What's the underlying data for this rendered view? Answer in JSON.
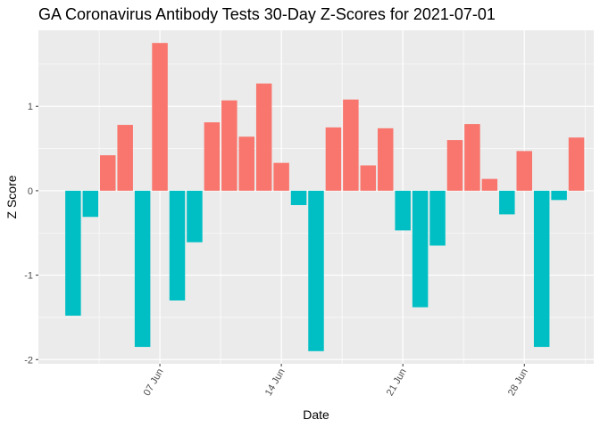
{
  "chart_data": {
    "type": "bar",
    "title": "GA Coronavirus Antibody Tests 30-Day Z-Scores for 2021-07-01",
    "xlabel": "Date",
    "ylabel": "Z Score",
    "x_ticks": [
      {
        "date": "2021-06-07",
        "label": "07 Jun"
      },
      {
        "date": "2021-06-14",
        "label": "14 Jun"
      },
      {
        "date": "2021-06-21",
        "label": "21 Jun"
      },
      {
        "date": "2021-06-28",
        "label": "28 Jun"
      }
    ],
    "y_ticks": [
      -2,
      -1,
      0,
      1
    ],
    "ylim": [
      -2.05,
      1.9
    ],
    "xlim": [
      "2021-05-31",
      "2021-07-02"
    ],
    "grid": true,
    "legend": "none",
    "colors": {
      "positive": "#F8766D",
      "negative": "#00BFC4",
      "panel": "#EBEBEB",
      "grid": "#FFFFFF"
    },
    "categories": [
      "2021-06-02",
      "2021-06-03",
      "2021-06-04",
      "2021-06-05",
      "2021-06-06",
      "2021-06-07",
      "2021-06-08",
      "2021-06-09",
      "2021-06-10",
      "2021-06-11",
      "2021-06-12",
      "2021-06-13",
      "2021-06-14",
      "2021-06-15",
      "2021-06-16",
      "2021-06-17",
      "2021-06-18",
      "2021-06-19",
      "2021-06-20",
      "2021-06-21",
      "2021-06-22",
      "2021-06-23",
      "2021-06-24",
      "2021-06-25",
      "2021-06-26",
      "2021-06-27",
      "2021-06-28",
      "2021-06-29",
      "2021-06-30",
      "2021-07-01"
    ],
    "values": [
      -1.48,
      -0.31,
      0.42,
      0.78,
      -1.85,
      1.75,
      -1.3,
      -0.61,
      0.81,
      1.07,
      0.64,
      1.27,
      0.33,
      -0.17,
      -1.9,
      0.75,
      1.08,
      0.3,
      0.74,
      -0.47,
      -1.38,
      -0.65,
      0.6,
      0.79,
      0.14,
      -0.28,
      0.47,
      -1.85,
      -0.11,
      0.63
    ]
  }
}
